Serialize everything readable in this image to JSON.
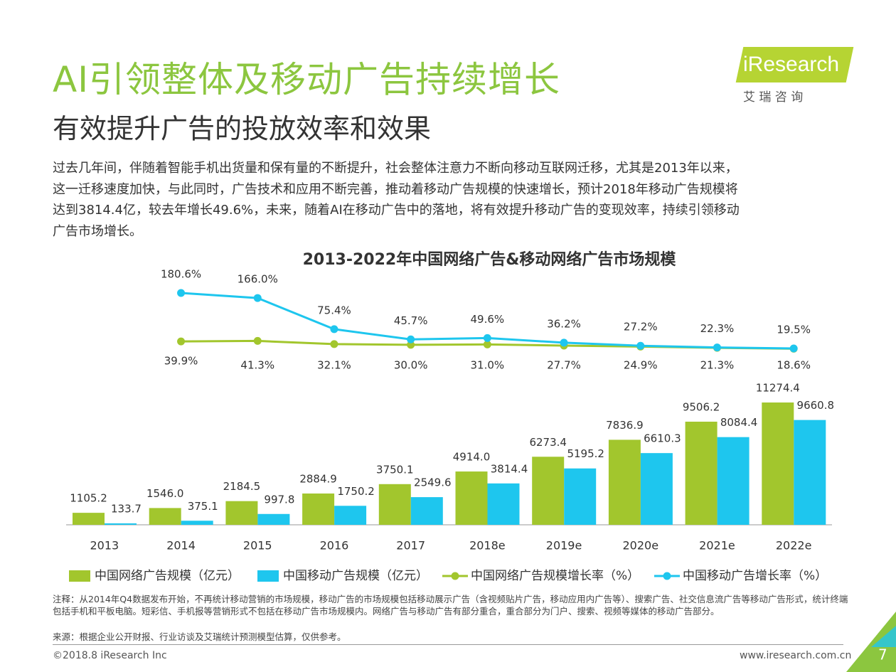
{
  "header": {
    "title": "AI引领整体及移动广告持续增长",
    "subtitle": "有效提升广告的投放效率和效果",
    "logo": {
      "brand": "iResearch",
      "tagline": "艾 瑞 咨 询"
    }
  },
  "body": {
    "lines": [
      "过去几年间，伴随着智能手机出货量和保有量的不断提升，社会整体注意力不断向移动互联网迁移，尤其是2013年以来，",
      "这一迁移速度加快，与此同时，广告技术和应用不断完善，推动着移动广告规模的快速增长，预计2018年移动广告规模将",
      "达到3814.4亿，较去年增长49.6%，未来，随着AI在移动广告中的落地，将有效提升移动广告的变现效率，持续引领移动",
      "广告市场增长。"
    ]
  },
  "chart_data": {
    "type": "bar-line",
    "title": "2013-2022年中国网络广告&移动网络广告市场规模",
    "categories": [
      "2013",
      "2014",
      "2015",
      "2016",
      "2017",
      "2018e",
      "2019e",
      "2020e",
      "2021e",
      "2022e"
    ],
    "series": [
      {
        "name": "中国网络广告规模（亿元）",
        "kind": "bar",
        "color": "#a2c62d",
        "values": [
          1105.2,
          1546.0,
          2184.5,
          2884.9,
          3750.1,
          4914.0,
          6273.4,
          7836.9,
          9506.2,
          11274.4
        ],
        "value_labels": [
          "1105.2",
          "1546.0",
          "2184.5",
          "2884.9",
          "3750.1",
          "4914.0",
          "6273.4",
          "7836.9",
          "9506.2",
          "11274.4"
        ]
      },
      {
        "name": "中国移动广告规模（亿元）",
        "kind": "bar",
        "color": "#1ec6ee",
        "values": [
          133.7,
          375.1,
          997.8,
          1750.2,
          2549.6,
          3814.4,
          5195.2,
          6610.3,
          8084.4,
          9660.8
        ],
        "value_labels": [
          "133.7",
          "375.1",
          "997.8",
          "1750.2",
          "2549.6",
          "3814.4",
          "5195.2",
          "6610.3",
          "8084.4",
          "9660.8"
        ]
      },
      {
        "name": "中国网络广告规模增长率（%）",
        "kind": "line",
        "color": "#a2c62d",
        "values": [
          null,
          39.9,
          41.3,
          32.1,
          30.0,
          31.0,
          27.7,
          24.9,
          21.3,
          18.6
        ],
        "value_labels": [
          null,
          "39.9%",
          "41.3%",
          "32.1%",
          "30.0%",
          "31.0%",
          "27.7%",
          "24.9%",
          "21.3%",
          "18.6%"
        ]
      },
      {
        "name": "中国移动广告增长率（%）",
        "kind": "line",
        "color": "#1ec6ee",
        "values": [
          null,
          180.6,
          166.0,
          75.4,
          45.7,
          49.6,
          36.2,
          27.2,
          22.3,
          19.5
        ],
        "value_labels": [
          null,
          "180.6%",
          "166.0%",
          "75.4%",
          "45.7%",
          "49.6%",
          "36.2%",
          "27.2%",
          "22.3%",
          "19.5%"
        ]
      }
    ]
  },
  "notes": {
    "note": "注释：从2014年Q4数据发布开始，不再统计移动营销的市场规模，移动广告的市场规模包括移动展示广告（含视频贴片广告，移动应用内广告等）、搜索广告、社交信息流广告等移动广告形式，统计终端包括手机和平板电脑。短彩信、手机报等营销形式不包括在移动广告市场规模内。网络广告与移动广告有部分重合，重合部分为门户、搜索、视频等媒体的移动广告部分。",
    "source": "来源：根据企业公开财报、行业访谈及艾瑞统计预测模型估算，仅供参考。"
  },
  "footer": {
    "copyright": "©2018.8 iResearch Inc",
    "url": "www.iresearch.com.cn",
    "page": "7"
  }
}
